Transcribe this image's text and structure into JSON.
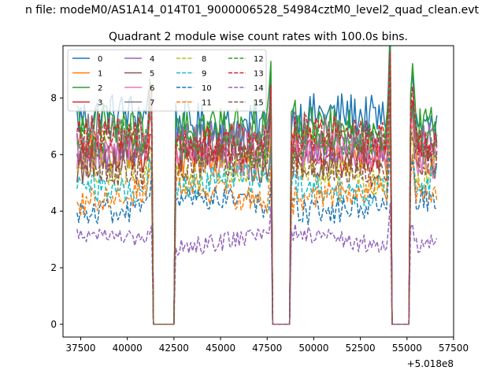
{
  "chart_data": {
    "type": "line",
    "suptitle": "n file: modeM0/AS1A14_014T01_9000006528_54984cztM0_level2_quad_clean.evt",
    "title": "Quadrant 2 module wise count rates with 100.0s bins.",
    "xlabel": "",
    "ylabel": "",
    "offset_text": "+5.018e8",
    "xlim": [
      36550,
      57500
    ],
    "ylim": [
      -0.45,
      9.85
    ],
    "x_ticks": [
      37500,
      40000,
      42500,
      45000,
      47500,
      50000,
      52500,
      55000,
      57500
    ],
    "x_tick_labels": [
      "37500",
      "40000",
      "42500",
      "45000",
      "47500",
      "50000",
      "52500",
      "55000",
      "57500"
    ],
    "y_ticks": [
      0,
      2,
      4,
      6,
      8
    ],
    "y_tick_labels": [
      "0",
      "2",
      "4",
      "6",
      "8"
    ],
    "grid": false,
    "legend_position": "upper-left",
    "legend_columns": 4,
    "bin_seconds": 100,
    "gti_segments": [
      {
        "start": 37300,
        "end": 41300,
        "flare_at": 41250,
        "flare": 8.1
      },
      {
        "start": 42600,
        "end": 47750,
        "flare_at": 47750,
        "flare": 8.5
      },
      {
        "start": 48750,
        "end": 54100,
        "flare_at": 54100,
        "flare": 9.25
      },
      {
        "start": 55200,
        "end": 56600,
        "flare_at": 55250,
        "flare": 8.6
      }
    ],
    "series": [
      {
        "name": "0",
        "color": "#1f77b4",
        "style": "solid",
        "level": 7.2
      },
      {
        "name": "1",
        "color": "#ff7f0e",
        "style": "solid",
        "level": 6.1
      },
      {
        "name": "2",
        "color": "#2ca02c",
        "style": "solid",
        "level": 7.0
      },
      {
        "name": "3",
        "color": "#d62728",
        "style": "solid",
        "level": 6.2
      },
      {
        "name": "4",
        "color": "#9467bd",
        "style": "solid",
        "level": 6.3
      },
      {
        "name": "5",
        "color": "#8c564b",
        "style": "solid",
        "level": 5.8
      },
      {
        "name": "6",
        "color": "#e377c2",
        "style": "solid",
        "level": 6.0
      },
      {
        "name": "7",
        "color": "#7f7f7f",
        "style": "solid",
        "level": 6.6
      },
      {
        "name": "8",
        "color": "#bcbd22",
        "style": "dashed",
        "level": 5.4
      },
      {
        "name": "9",
        "color": "#17becf",
        "style": "dashed",
        "level": 4.9
      },
      {
        "name": "10",
        "color": "#1f77b4",
        "style": "dashed",
        "level": 4.2
      },
      {
        "name": "11",
        "color": "#ff7f0e",
        "style": "dashed",
        "level": 4.6
      },
      {
        "name": "12",
        "color": "#2ca02c",
        "style": "dashed",
        "level": 6.4
      },
      {
        "name": "13",
        "color": "#d62728",
        "style": "dashed",
        "level": 6.5
      },
      {
        "name": "14",
        "color": "#9467bd",
        "style": "dashed",
        "level": 3.0
      },
      {
        "name": "15",
        "color": "#8c564b",
        "style": "dashed",
        "level": 5.6
      }
    ]
  }
}
